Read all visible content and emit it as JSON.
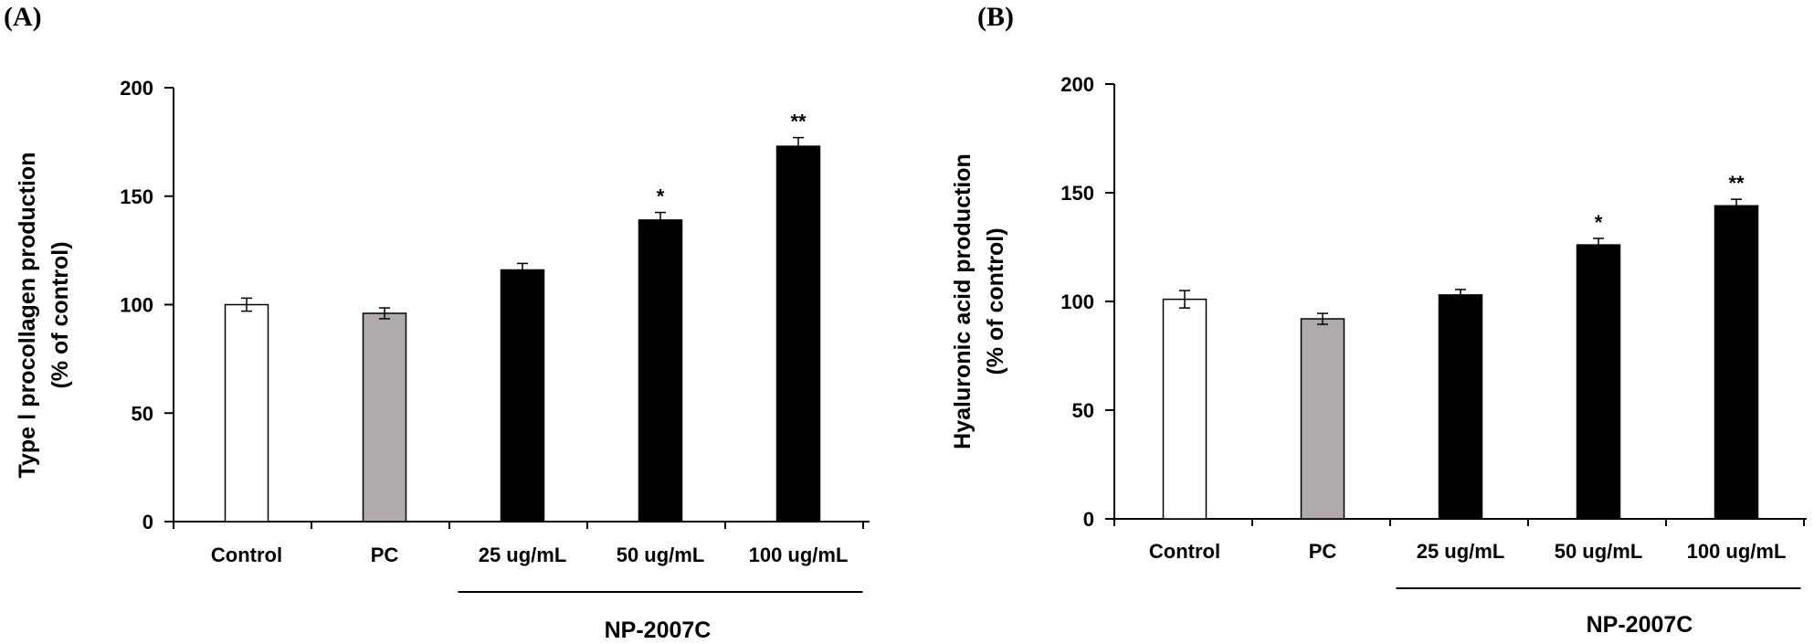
{
  "chart_data": [
    {
      "type": "bar",
      "panel_label": "(A)",
      "ylabel_lines": [
        "Type Ⅰ procollagen production",
        "(% of control)"
      ],
      "categories": [
        "Control",
        "PC",
        "25 ug/mL",
        "50 ug/mL",
        "100 ug/mL"
      ],
      "values": [
        100,
        96,
        116,
        139,
        173
      ],
      "errors": [
        3,
        2.5,
        3,
        3.5,
        4
      ],
      "significance": [
        "",
        "",
        "",
        "*",
        "**"
      ],
      "colors": [
        "#ffffff",
        "#b0aaaa",
        "#000000",
        "#000000",
        "#000000"
      ],
      "ylim": [
        0,
        200
      ],
      "yticks": [
        0,
        50,
        100,
        150,
        200
      ],
      "group_label": "NP-2007C",
      "group_categories": [
        "25 ug/mL",
        "50 ug/mL",
        "100 ug/mL"
      ]
    },
    {
      "type": "bar",
      "panel_label": "(B)",
      "ylabel_lines": [
        "Hyaluronic acid production",
        "(% of control)"
      ],
      "categories": [
        "Control",
        "PC",
        "25 ug/mL",
        "50 ug/mL",
        "100 ug/mL"
      ],
      "values": [
        101,
        92,
        103,
        126,
        144
      ],
      "errors": [
        4,
        2.5,
        2.5,
        3,
        3
      ],
      "significance": [
        "",
        "",
        "",
        "*",
        "**"
      ],
      "colors": [
        "#ffffff",
        "#b0aaaa",
        "#000000",
        "#000000",
        "#000000"
      ],
      "ylim": [
        0,
        200
      ],
      "yticks": [
        0,
        50,
        100,
        150,
        200
      ],
      "group_label": "NP-2007C",
      "group_categories": [
        "25 ug/mL",
        "50 ug/mL",
        "100 ug/mL"
      ]
    }
  ]
}
